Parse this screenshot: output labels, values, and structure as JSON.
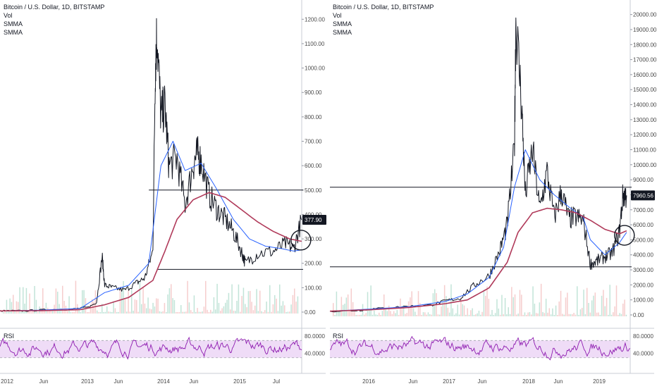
{
  "panels": [
    {
      "header": {
        "title": "Bitcoin / U.S. Dollar, 1D, BITSTAMP",
        "indicators": [
          "Vol",
          "SMMA",
          "SMMA"
        ]
      },
      "price_axis": {
        "ticks": [
          "1200.00",
          "1100.00",
          "1000.00",
          "900.00",
          "800.00",
          "700.00",
          "600.00",
          "500.00",
          "400.00",
          "300.00",
          "200.00",
          "100.00",
          "0.00"
        ]
      },
      "price_badge": "377.90",
      "rsi": {
        "label": "RSI",
        "ticks": [
          "80.0000",
          "40.0000"
        ]
      },
      "time_axis": [
        "2012",
        "Jun",
        "2013",
        "Jun",
        "2014",
        "Jun",
        "2015",
        "Jul"
      ]
    },
    {
      "header": {
        "title": "Bitcoin / U.S. Dollar, 1D, BITSTAMP",
        "indicators": [
          "Vol",
          "SMMA",
          "SMMA"
        ]
      },
      "price_axis": {
        "ticks": [
          "20000.00",
          "19000.00",
          "18000.00",
          "17000.00",
          "16000.00",
          "15000.00",
          "14000.00",
          "13000.00",
          "12000.00",
          "11000.00",
          "10000.00",
          "9000.00",
          "8000.00",
          "7000.00",
          "6000.00",
          "5000.00",
          "4000.00",
          "3000.00",
          "2000.00",
          "1000.00",
          "0.00"
        ]
      },
      "price_badge": "7960.56",
      "rsi": {
        "label": "RSI",
        "ticks": [
          "80.0000",
          "40.0000"
        ]
      },
      "time_axis": [
        "2016",
        "Jun",
        "2017",
        "Jun",
        "2018",
        "Jun",
        "2019"
      ]
    }
  ],
  "colors": {
    "price": "#131722",
    "smma_fast": "#2962ff",
    "smma_slow": "#b03a5a",
    "rsi_line": "#8e1bb0",
    "rsi_band": "#efdcf7",
    "vol_up": "#a8d8c8",
    "vol_down": "#f2b8b8",
    "grid": "#e0e3eb",
    "axis_text": "#4a4a4a",
    "badge_bg": "#131722",
    "badge_text": "#ffffff"
  },
  "chart_data": [
    {
      "type": "line",
      "title": "Bitcoin / U.S. Dollar, 1D, BITSTAMP",
      "ylim": [
        0,
        1250
      ],
      "xlim": [
        2012.0,
        2015.75
      ],
      "series": [
        {
          "name": "Bitcoin / U.S. Dollar",
          "x": [
            2012.0,
            2012.3,
            2012.6,
            2012.9,
            2013.1,
            2013.2,
            2013.27,
            2013.3,
            2013.4,
            2013.55,
            2013.7,
            2013.8,
            2013.9,
            2013.93,
            2013.95,
            2014.0,
            2014.05,
            2014.1,
            2014.2,
            2014.3,
            2014.4,
            2014.45,
            2014.5,
            2014.6,
            2014.7,
            2014.8,
            2014.9,
            2015.0,
            2015.05,
            2015.2,
            2015.4,
            2015.55,
            2015.65,
            2015.75
          ],
          "y": [
            5,
            5,
            10,
            12,
            20,
            40,
            230,
            110,
            100,
            90,
            120,
            140,
            250,
            1000,
            1150,
            800,
            850,
            600,
            630,
            440,
            600,
            650,
            620,
            480,
            420,
            380,
            330,
            250,
            200,
            240,
            250,
            280,
            260,
            378
          ]
        },
        {
          "name": "SMMA",
          "x": [
            2012.0,
            2012.5,
            2013.0,
            2013.3,
            2013.6,
            2013.85,
            2014.0,
            2014.15,
            2014.3,
            2014.5,
            2014.7,
            2014.9,
            2015.1,
            2015.3,
            2015.5,
            2015.65,
            2015.75
          ],
          "y": [
            5,
            8,
            15,
            80,
            110,
            200,
            600,
            700,
            580,
            610,
            500,
            380,
            300,
            270,
            260,
            250,
            255
          ]
        },
        {
          "name": "SMMA",
          "x": [
            2012.0,
            2012.5,
            2013.0,
            2013.3,
            2013.6,
            2013.9,
            2014.05,
            2014.2,
            2014.4,
            2014.6,
            2014.8,
            2015.0,
            2015.2,
            2015.4,
            2015.6,
            2015.75
          ],
          "y": [
            5,
            6,
            10,
            30,
            60,
            130,
            250,
            380,
            460,
            490,
            470,
            420,
            370,
            330,
            300,
            290
          ]
        }
      ],
      "annotations": {
        "horizontal_lines": [
          500,
          175
        ],
        "circle_center": [
          2015.74,
          295
        ]
      }
    },
    {
      "type": "line",
      "title": "Bitcoin / U.S. Dollar, 1D, BITSTAMP",
      "ylim": [
        0,
        20500
      ],
      "xlim": [
        2015.4,
        2019.55
      ],
      "series": [
        {
          "name": "Bitcoin / U.S. Dollar",
          "x": [
            2015.4,
            2015.8,
            2016.0,
            2016.4,
            2016.8,
            2017.0,
            2017.2,
            2017.4,
            2017.6,
            2017.75,
            2017.85,
            2017.95,
            2017.97,
            2018.05,
            2018.1,
            2018.2,
            2018.3,
            2018.4,
            2018.5,
            2018.6,
            2018.7,
            2018.8,
            2018.9,
            2019.0,
            2019.1,
            2019.2,
            2019.3,
            2019.4,
            2019.45,
            2019.5
          ],
          "y": [
            250,
            300,
            400,
            550,
            650,
            950,
            1100,
            2000,
            2600,
            4300,
            6000,
            11000,
            19700,
            14000,
            8000,
            11000,
            7000,
            9500,
            6500,
            8200,
            6400,
            6500,
            6300,
            3400,
            3600,
            3900,
            4100,
            5500,
            8000,
            7960
          ]
        },
        {
          "name": "SMMA",
          "x": [
            2015.4,
            2016.0,
            2016.5,
            2017.0,
            2017.3,
            2017.6,
            2017.8,
            2017.95,
            2018.1,
            2018.3,
            2018.5,
            2018.7,
            2018.9,
            2019.0,
            2019.2,
            2019.4,
            2019.5
          ],
          "y": [
            250,
            400,
            550,
            900,
            1400,
            2500,
            4500,
            8500,
            11000,
            9000,
            8000,
            7200,
            6500,
            5000,
            4000,
            4800,
            5500
          ]
        },
        {
          "name": "SMMA",
          "x": [
            2015.4,
            2016.0,
            2016.5,
            2017.0,
            2017.3,
            2017.6,
            2017.85,
            2018.0,
            2018.2,
            2018.4,
            2018.6,
            2018.8,
            2019.0,
            2019.2,
            2019.4,
            2019.5
          ],
          "y": [
            250,
            350,
            500,
            750,
            1000,
            1800,
            3500,
            5500,
            6800,
            7100,
            7000,
            6800,
            6300,
            5700,
            5400,
            5600
          ]
        }
      ],
      "annotations": {
        "horizontal_lines": [
          8500,
          3200
        ],
        "circle_center": [
          2019.47,
          5300
        ]
      }
    }
  ]
}
